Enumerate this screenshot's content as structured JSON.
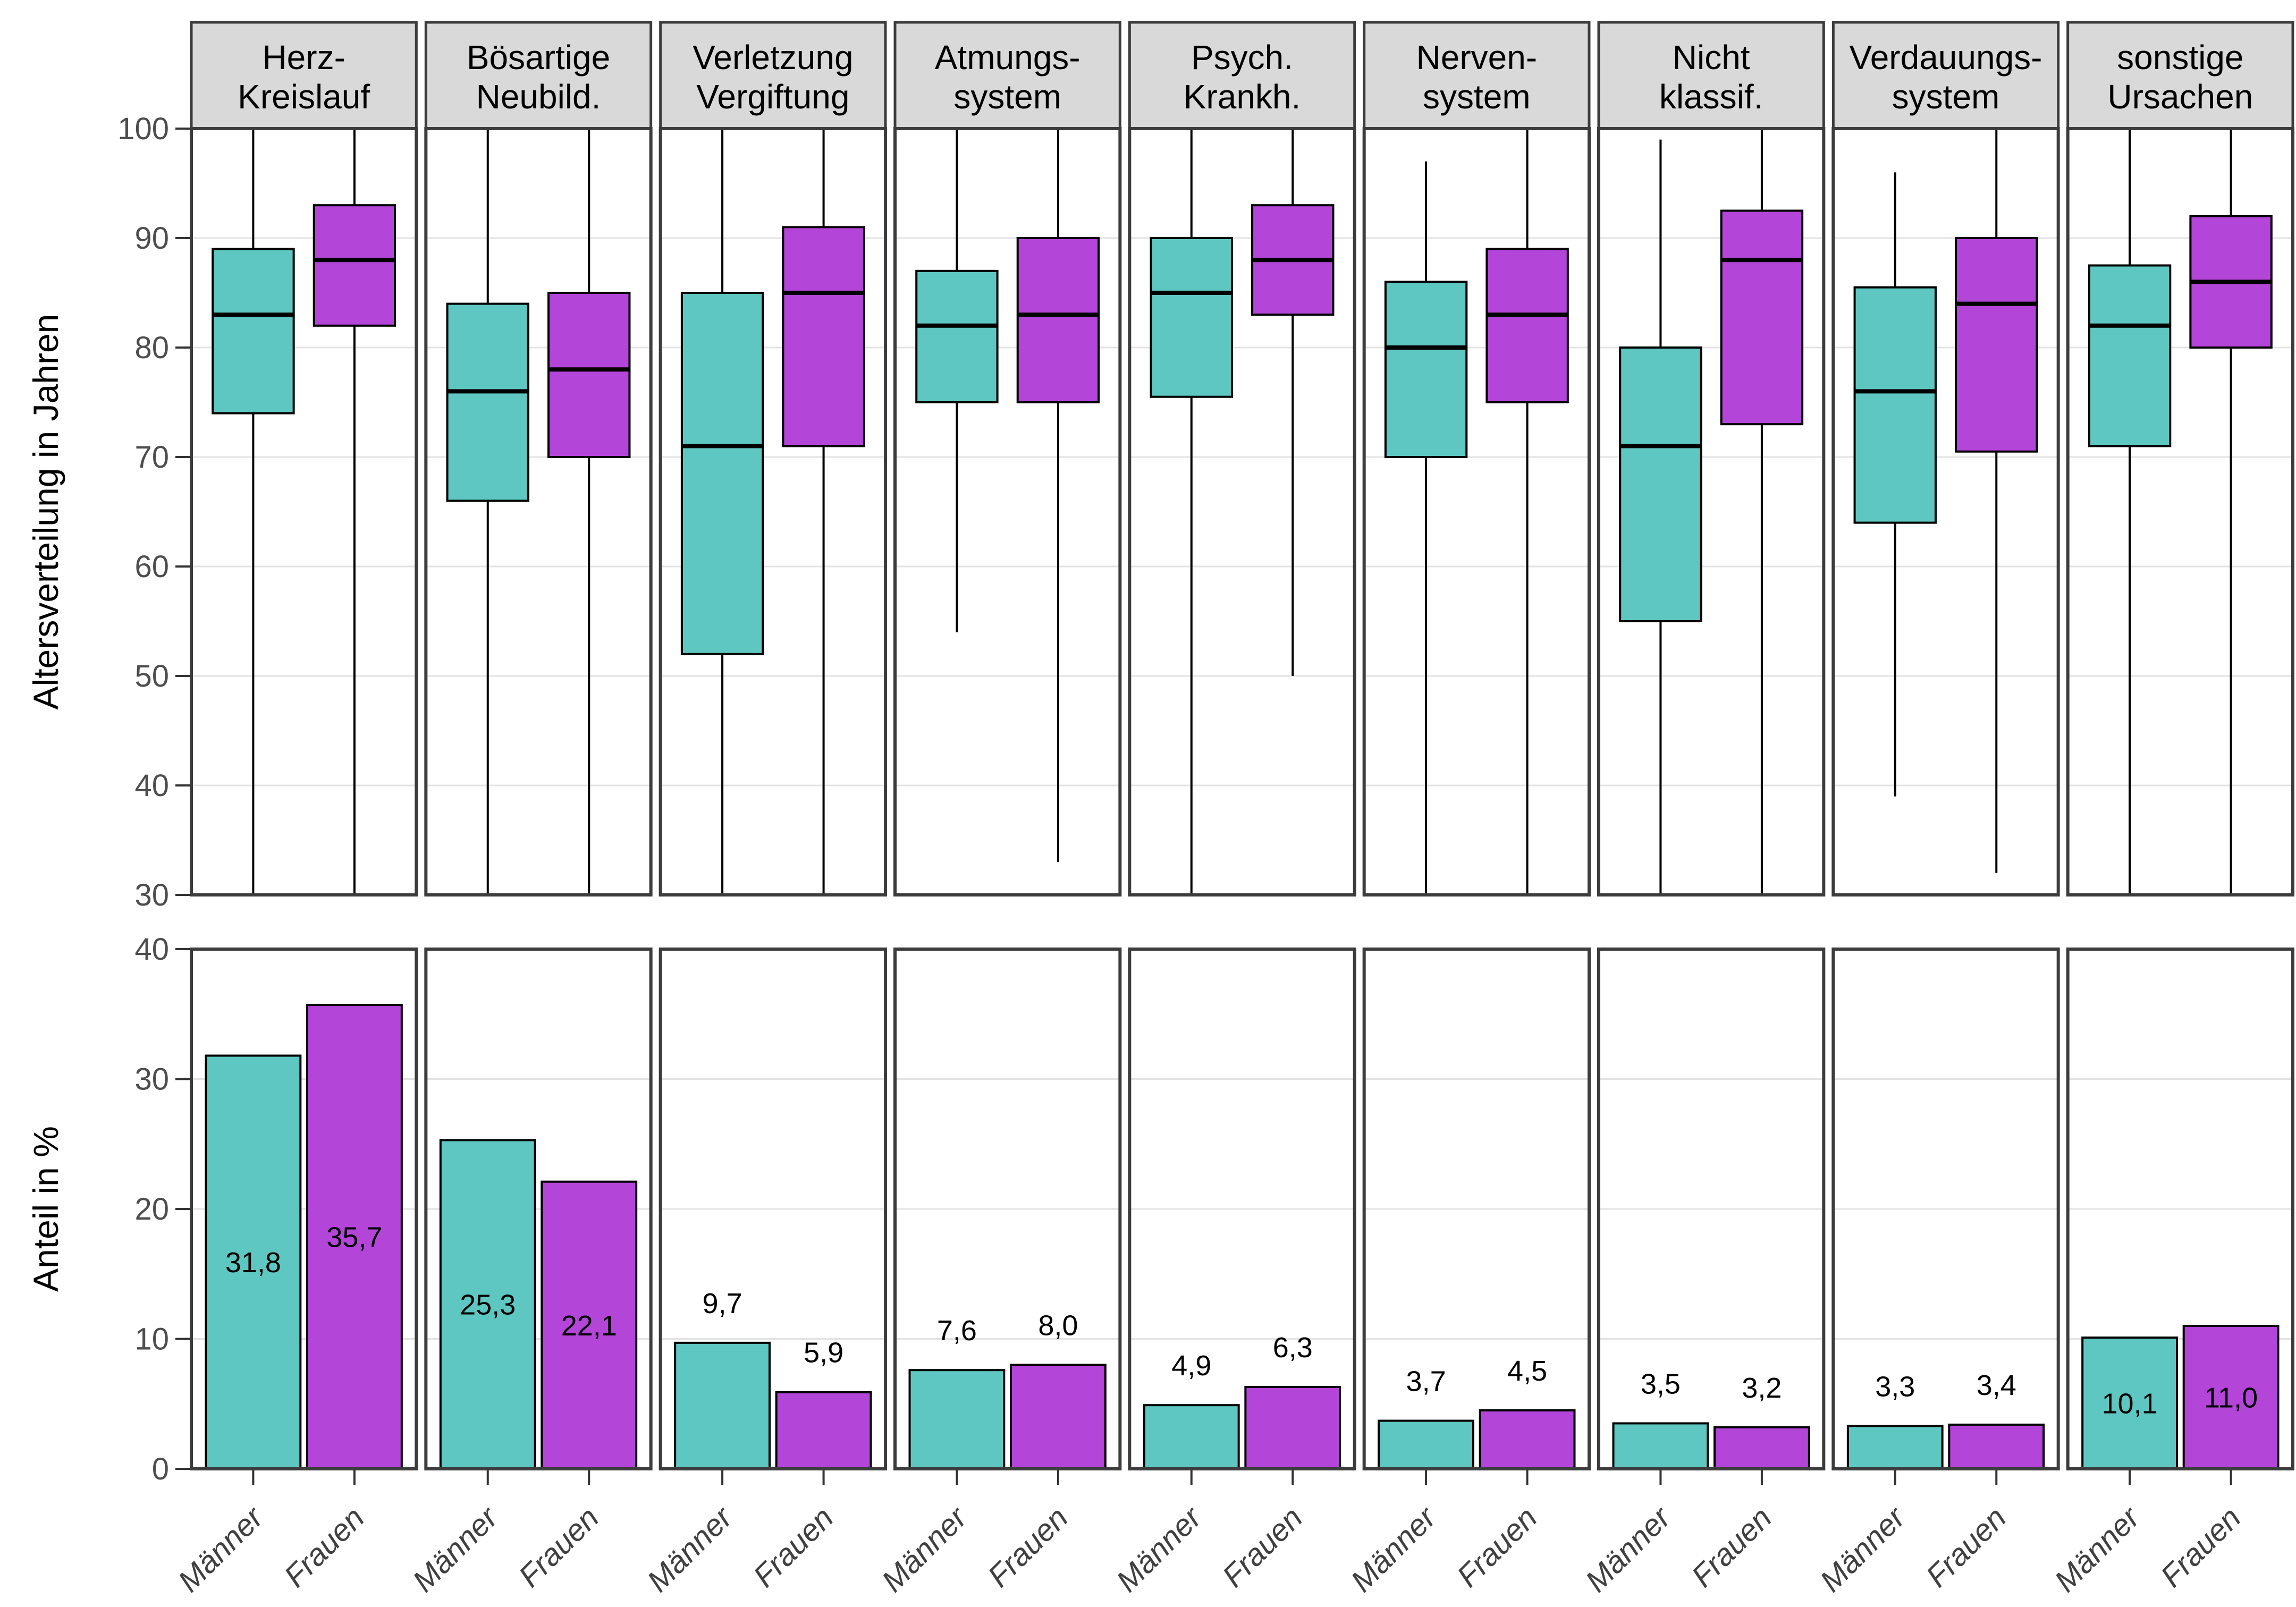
{
  "chart_data": {
    "type": "boxplot+bar",
    "description": "Faceted chart: top row boxplots of age distribution, bottom row bar charts of percentage share, by cause of death and gender",
    "groups": [
      {
        "key": "maenner",
        "label": "Männer",
        "color": "#5ec7c1"
      },
      {
        "key": "frauen",
        "label": "Frauen",
        "color": "#b445d9"
      }
    ],
    "top": {
      "ylabel": "Altersverteilung in Jahren",
      "ylim": [
        30,
        100
      ],
      "yticks": [
        30,
        40,
        50,
        60,
        70,
        80,
        90,
        100
      ],
      "grid": "major-horizontal"
    },
    "bottom": {
      "ylabel": "Anteil in %",
      "ylim": [
        0,
        40
      ],
      "yticks": [
        0,
        10,
        20,
        30,
        40
      ],
      "grid": "major-horizontal"
    },
    "facets": [
      {
        "label_lines": [
          "Herz-",
          "Kreislauf"
        ],
        "box": {
          "maenner": {
            "min": 30,
            "q1": 74,
            "median": 83,
            "q3": 89,
            "max": 100
          },
          "frauen": {
            "min": 30,
            "q1": 82,
            "median": 88,
            "q3": 93,
            "max": 100
          }
        },
        "bar": {
          "maenner": 31.8,
          "frauen": 35.7
        },
        "bar_labels": {
          "maenner": "31,8",
          "frauen": "35,7"
        }
      },
      {
        "label_lines": [
          "Bösartige",
          "Neubild."
        ],
        "box": {
          "maenner": {
            "min": 30,
            "q1": 66,
            "median": 76,
            "q3": 84,
            "max": 100
          },
          "frauen": {
            "min": 30,
            "q1": 70,
            "median": 78,
            "q3": 85,
            "max": 100
          }
        },
        "bar": {
          "maenner": 25.3,
          "frauen": 22.1
        },
        "bar_labels": {
          "maenner": "25,3",
          "frauen": "22,1"
        }
      },
      {
        "label_lines": [
          "Verletzung",
          "Vergiftung"
        ],
        "box": {
          "maenner": {
            "min": 30,
            "q1": 52,
            "median": 71,
            "q3": 85,
            "max": 100
          },
          "frauen": {
            "min": 30,
            "q1": 71,
            "median": 85,
            "q3": 91,
            "max": 100
          }
        },
        "bar": {
          "maenner": 9.7,
          "frauen": 5.9
        },
        "bar_labels": {
          "maenner": "9,7",
          "frauen": "5,9"
        }
      },
      {
        "label_lines": [
          "Atmungs-",
          "system"
        ],
        "box": {
          "maenner": {
            "min": 54,
            "q1": 75,
            "median": 82,
            "q3": 87,
            "max": 100
          },
          "frauen": {
            "min": 33,
            "q1": 75,
            "median": 83,
            "q3": 90,
            "max": 100
          }
        },
        "bar": {
          "maenner": 7.6,
          "frauen": 8.0
        },
        "bar_labels": {
          "maenner": "7,6",
          "frauen": "8,0"
        }
      },
      {
        "label_lines": [
          "Psych.",
          "Krankh."
        ],
        "box": {
          "maenner": {
            "min": 30,
            "q1": 75.5,
            "median": 85,
            "q3": 90,
            "max": 100
          },
          "frauen": {
            "min": 50,
            "q1": 83,
            "median": 88,
            "q3": 93,
            "max": 100
          }
        },
        "bar": {
          "maenner": 4.9,
          "frauen": 6.3
        },
        "bar_labels": {
          "maenner": "4,9",
          "frauen": "6,3"
        }
      },
      {
        "label_lines": [
          "Nerven-",
          "system"
        ],
        "box": {
          "maenner": {
            "min": 30,
            "q1": 70,
            "median": 80,
            "q3": 86,
            "max": 97
          },
          "frauen": {
            "min": 30,
            "q1": 75,
            "median": 83,
            "q3": 89,
            "max": 100
          }
        },
        "bar": {
          "maenner": 3.7,
          "frauen": 4.5
        },
        "bar_labels": {
          "maenner": "3,7",
          "frauen": "4,5"
        }
      },
      {
        "label_lines": [
          "Nicht",
          "klassif."
        ],
        "box": {
          "maenner": {
            "min": 30,
            "q1": 55,
            "median": 71,
            "q3": 80,
            "max": 99
          },
          "frauen": {
            "min": 30,
            "q1": 73,
            "median": 88,
            "q3": 92.5,
            "max": 100
          }
        },
        "bar": {
          "maenner": 3.5,
          "frauen": 3.2
        },
        "bar_labels": {
          "maenner": "3,5",
          "frauen": "3,2"
        }
      },
      {
        "label_lines": [
          "Verdauungs-",
          "system"
        ],
        "box": {
          "maenner": {
            "min": 39,
            "q1": 64,
            "median": 76,
            "q3": 85.5,
            "max": 96
          },
          "frauen": {
            "min": 32,
            "q1": 70.5,
            "median": 84,
            "q3": 90,
            "max": 100
          }
        },
        "bar": {
          "maenner": 3.3,
          "frauen": 3.4
        },
        "bar_labels": {
          "maenner": "3,3",
          "frauen": "3,4"
        }
      },
      {
        "label_lines": [
          "sonstige",
          "Ursachen"
        ],
        "box": {
          "maenner": {
            "min": 30,
            "q1": 71,
            "median": 82,
            "q3": 87.5,
            "max": 100
          },
          "frauen": {
            "min": 30,
            "q1": 80,
            "median": 86,
            "q3": 92,
            "max": 100
          }
        },
        "bar": {
          "maenner": 10.1,
          "frauen": 11.0
        },
        "bar_labels": {
          "maenner": "10,1",
          "frauen": "11,0"
        }
      }
    ],
    "styles": {
      "facet_header_bg": "#d9d9d9",
      "panel_border": "#3c3c3c",
      "gridline": "#e3e3e3",
      "tick_mark": "#333333",
      "tick_label": "#4d4d4d",
      "x_group_label": "#404040",
      "box_stroke": "#000000",
      "bar_label": "#000000"
    }
  }
}
